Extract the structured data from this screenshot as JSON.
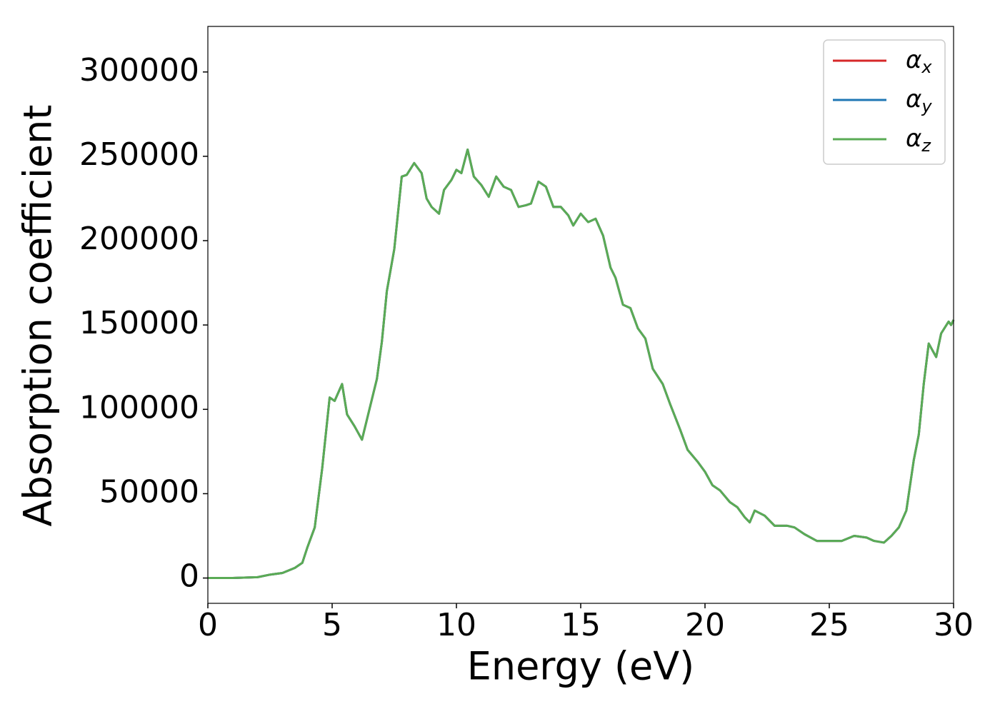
{
  "chart_data": {
    "type": "line",
    "xlabel": "Energy (eV)",
    "ylabel": "Absorption coefficient",
    "x": [
      0,
      1,
      2,
      2.5,
      3,
      3.5,
      3.8,
      4,
      4.3,
      4.6,
      4.9,
      5.1,
      5.4,
      5.6,
      5.9,
      6.2,
      6.5,
      6.8,
      7.0,
      7.2,
      7.5,
      7.8,
      8.0,
      8.3,
      8.6,
      8.8,
      9.0,
      9.3,
      9.5,
      9.8,
      10.0,
      10.2,
      10.45,
      10.7,
      11.0,
      11.3,
      11.6,
      11.9,
      12.2,
      12.5,
      12.8,
      13.0,
      13.3,
      13.6,
      13.9,
      14.2,
      14.5,
      14.7,
      15.0,
      15.3,
      15.6,
      15.9,
      16.2,
      16.4,
      16.7,
      17.0,
      17.3,
      17.6,
      17.9,
      18.3,
      18.6,
      19.0,
      19.3,
      19.7,
      20.0,
      20.3,
      20.6,
      21.0,
      21.3,
      21.6,
      21.8,
      22.0,
      22.4,
      22.8,
      23.3,
      23.6,
      24.0,
      24.5,
      25.0,
      25.5,
      26.0,
      26.5,
      26.8,
      27.2,
      27.5,
      27.8,
      28.1,
      28.4,
      28.6,
      28.8,
      29.0,
      29.3,
      29.5,
      29.8,
      29.9,
      30.0
    ],
    "series": [
      {
        "name": "αx",
        "color": "#d62728",
        "values": [
          0,
          0,
          500,
          2000,
          3000,
          6000,
          9000,
          18000,
          30000,
          65000,
          107000,
          105000,
          115000,
          97000,
          90000,
          82000,
          100000,
          118000,
          140000,
          170000,
          195000,
          238000,
          239000,
          246000,
          240000,
          225000,
          220000,
          216000,
          230000,
          236000,
          242000,
          240000,
          254000,
          238000,
          233000,
          226000,
          238000,
          232000,
          230000,
          220000,
          221000,
          222000,
          235000,
          232000,
          220000,
          220000,
          215000,
          209000,
          216000,
          211000,
          213000,
          203000,
          184000,
          178000,
          162000,
          160000,
          148000,
          142000,
          124000,
          115000,
          103000,
          88000,
          76000,
          69000,
          63000,
          55000,
          52000,
          45000,
          42000,
          36000,
          33000,
          40000,
          37000,
          31000,
          31000,
          30000,
          26000,
          22000,
          22000,
          22000,
          25000,
          24000,
          22000,
          21000,
          25000,
          30000,
          40000,
          70000,
          85000,
          115000,
          139000,
          131000,
          145000,
          152000,
          150000,
          153000
        ]
      },
      {
        "name": "αy",
        "color": "#1f77b4",
        "values": [
          0,
          0,
          500,
          2000,
          3000,
          6000,
          9000,
          18000,
          30000,
          65000,
          107000,
          105000,
          115000,
          97000,
          90000,
          82000,
          100000,
          118000,
          140000,
          170000,
          195000,
          238000,
          239000,
          246000,
          240000,
          225000,
          220000,
          216000,
          230000,
          236000,
          242000,
          240000,
          254000,
          238000,
          233000,
          226000,
          238000,
          232000,
          230000,
          220000,
          221000,
          222000,
          235000,
          232000,
          220000,
          220000,
          215000,
          209000,
          216000,
          211000,
          213000,
          203000,
          184000,
          178000,
          162000,
          160000,
          148000,
          142000,
          124000,
          115000,
          103000,
          88000,
          76000,
          69000,
          63000,
          55000,
          52000,
          45000,
          42000,
          36000,
          33000,
          40000,
          37000,
          31000,
          31000,
          30000,
          26000,
          22000,
          22000,
          22000,
          25000,
          24000,
          22000,
          21000,
          25000,
          30000,
          40000,
          70000,
          85000,
          115000,
          139000,
          131000,
          145000,
          152000,
          150000,
          153000
        ]
      },
      {
        "name": "αz",
        "color": "#5aab55",
        "values": [
          0,
          0,
          500,
          2000,
          3000,
          6000,
          9000,
          18000,
          30000,
          65000,
          107000,
          105000,
          115000,
          97000,
          90000,
          82000,
          100000,
          118000,
          140000,
          170000,
          195000,
          238000,
          239000,
          246000,
          240000,
          225000,
          220000,
          216000,
          230000,
          236000,
          242000,
          240000,
          254000,
          238000,
          233000,
          226000,
          238000,
          232000,
          230000,
          220000,
          221000,
          222000,
          235000,
          232000,
          220000,
          220000,
          215000,
          209000,
          216000,
          211000,
          213000,
          203000,
          184000,
          178000,
          162000,
          160000,
          148000,
          142000,
          124000,
          115000,
          103000,
          88000,
          76000,
          69000,
          63000,
          55000,
          52000,
          45000,
          42000,
          36000,
          33000,
          40000,
          37000,
          31000,
          31000,
          30000,
          26000,
          22000,
          22000,
          22000,
          25000,
          24000,
          22000,
          21000,
          25000,
          30000,
          40000,
          70000,
          85000,
          115000,
          139000,
          131000,
          145000,
          152000,
          150000,
          153000
        ]
      }
    ],
    "xlim": [
      0,
      30
    ],
    "xticks": [
      0,
      5,
      10,
      15,
      20,
      25,
      30
    ],
    "ylim": [
      -15000,
      327000
    ],
    "yticks": [
      0,
      50000,
      100000,
      150000,
      200000,
      250000,
      300000
    ],
    "grid": false,
    "legend": "upper right"
  }
}
